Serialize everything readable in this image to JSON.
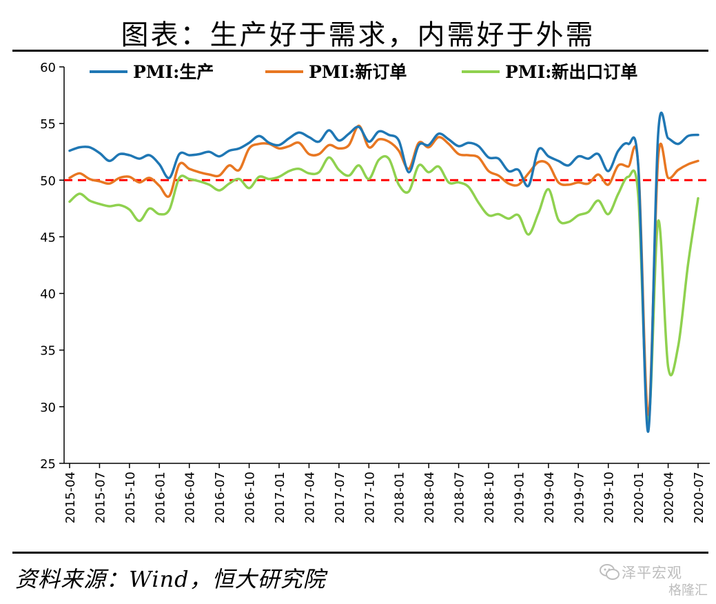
{
  "title": "图表：生产好于需求，内需好于外需",
  "source": "资料来源：Wind，恒大研究院",
  "watermark": {
    "name": "泽平宏观",
    "sub": "格隆汇"
  },
  "chart_data": {
    "type": "line",
    "title": "图表：生产好于需求，内需好于外需",
    "xlabel": "",
    "ylabel": "",
    "ylim": [
      25,
      60
    ],
    "yticks": [
      25,
      30,
      35,
      40,
      45,
      50,
      55,
      60
    ],
    "xtick_labels": [
      "2015-04",
      "2015-07",
      "2015-10",
      "2016-01",
      "2016-04",
      "2016-07",
      "2016-10",
      "2017-01",
      "2017-04",
      "2017-07",
      "2017-10",
      "2018-01",
      "2018-04",
      "2018-07",
      "2018-10",
      "2019-01",
      "2019-04",
      "2019-07",
      "2019-10",
      "2020-01",
      "2020-04",
      "2020-07"
    ],
    "x": [
      "2015-04",
      "2015-05",
      "2015-06",
      "2015-07",
      "2015-08",
      "2015-09",
      "2015-10",
      "2015-11",
      "2015-12",
      "2016-01",
      "2016-02",
      "2016-03",
      "2016-04",
      "2016-05",
      "2016-06",
      "2016-07",
      "2016-08",
      "2016-09",
      "2016-10",
      "2016-11",
      "2016-12",
      "2017-01",
      "2017-02",
      "2017-03",
      "2017-04",
      "2017-05",
      "2017-06",
      "2017-07",
      "2017-08",
      "2017-09",
      "2017-10",
      "2017-11",
      "2017-12",
      "2018-01",
      "2018-02",
      "2018-03",
      "2018-04",
      "2018-05",
      "2018-06",
      "2018-07",
      "2018-08",
      "2018-09",
      "2018-10",
      "2018-11",
      "2018-12",
      "2019-01",
      "2019-02",
      "2019-03",
      "2019-04",
      "2019-05",
      "2019-06",
      "2019-07",
      "2019-08",
      "2019-09",
      "2019-10",
      "2019-11",
      "2019-12",
      "2020-01",
      "2020-02",
      "2020-03",
      "2020-04",
      "2020-05",
      "2020-06",
      "2020-07"
    ],
    "reference_line": {
      "y": 50,
      "color": "#ff0000",
      "style": "dashed"
    },
    "legend_position": "top",
    "grid": false,
    "series": [
      {
        "name": "PMI:生产",
        "color": "#1f77b4",
        "values": [
          52.6,
          52.9,
          52.9,
          52.4,
          51.7,
          52.3,
          52.2,
          51.9,
          52.2,
          51.4,
          50.2,
          52.3,
          52.2,
          52.3,
          52.5,
          52.1,
          52.6,
          52.8,
          53.3,
          53.9,
          53.3,
          53.1,
          53.7,
          54.2,
          53.8,
          53.4,
          54.4,
          53.5,
          54.1,
          54.7,
          53.4,
          54.3,
          54.0,
          53.5,
          50.7,
          53.1,
          53.1,
          54.1,
          53.6,
          53.0,
          53.3,
          53.0,
          52.0,
          51.9,
          50.8,
          50.9,
          49.5,
          52.7,
          52.1,
          51.7,
          51.3,
          52.1,
          51.9,
          52.3,
          50.8,
          52.6,
          53.2,
          51.3,
          27.8,
          54.1,
          53.7,
          53.2,
          53.9,
          54.0
        ]
      },
      {
        "name": "PMI:新订单",
        "color": "#e87722",
        "values": [
          50.2,
          50.6,
          50.1,
          49.9,
          49.7,
          50.2,
          50.3,
          49.8,
          50.2,
          49.5,
          48.6,
          51.4,
          51.0,
          50.7,
          50.5,
          50.4,
          51.3,
          50.9,
          52.8,
          53.2,
          53.2,
          52.8,
          53.0,
          53.3,
          52.3,
          52.3,
          53.1,
          52.8,
          53.1,
          54.8,
          52.9,
          53.6,
          53.4,
          52.6,
          51.0,
          53.3,
          52.9,
          53.8,
          53.2,
          52.3,
          52.2,
          52.0,
          50.8,
          50.4,
          49.7,
          49.6,
          50.6,
          51.6,
          51.4,
          49.8,
          49.6,
          49.8,
          49.7,
          50.5,
          49.6,
          51.3,
          51.2,
          51.4,
          29.3,
          52.0,
          50.2,
          50.9,
          51.4,
          51.7
        ]
      },
      {
        "name": "PMI:新出口订单",
        "color": "#8fd14f",
        "values": [
          48.1,
          48.8,
          48.2,
          47.9,
          47.7,
          47.8,
          47.4,
          46.4,
          47.5,
          47.0,
          47.4,
          50.2,
          50.1,
          49.9,
          49.6,
          49.1,
          49.7,
          50.1,
          49.3,
          50.3,
          50.1,
          50.3,
          50.8,
          51.0,
          50.6,
          50.7,
          52.0,
          50.9,
          50.4,
          51.3,
          50.1,
          51.8,
          51.9,
          49.6,
          49.0,
          51.3,
          50.7,
          51.2,
          49.8,
          49.8,
          49.4,
          48.0,
          46.9,
          47.0,
          46.6,
          46.9,
          45.2,
          47.1,
          49.2,
          46.5,
          46.3,
          46.9,
          47.2,
          48.2,
          47.0,
          48.8,
          50.3,
          48.7,
          28.7,
          46.4,
          33.5,
          35.3,
          42.6,
          48.4
        ]
      }
    ]
  }
}
